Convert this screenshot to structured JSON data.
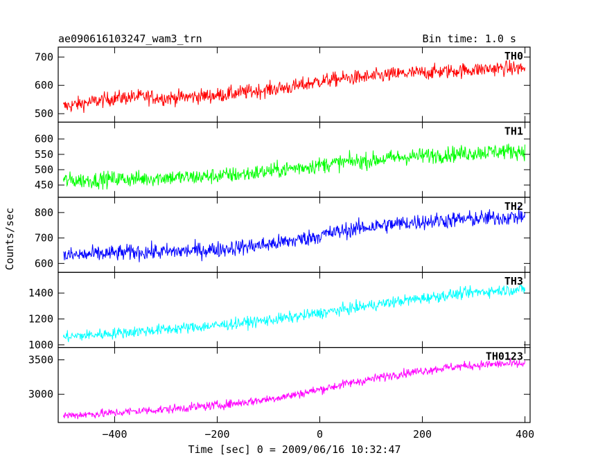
{
  "chart_data": {
    "type": "line",
    "title": "ae090616103247_wam3_trn",
    "bin_time_label": "Bin time: 1.0 s",
    "xlabel": "Time [sec] 0 = 2009/06/16 10:32:47",
    "ylabel": "Counts/sec",
    "xlim": [
      -510,
      410
    ],
    "x_ticks": [
      -400,
      -200,
      0,
      200,
      400
    ],
    "x_tick_labels": [
      "−400",
      "−200",
      "0",
      "200",
      "400"
    ],
    "grid": false,
    "series": [
      {
        "name": "TH0",
        "color": "#ff0000",
        "ylim": [
          470,
          735
        ],
        "y_ticks": [
          500,
          600,
          700
        ],
        "y_tick_labels": [
          "500",
          "600",
          "700"
        ],
        "x": [
          -500,
          -450,
          -400,
          -350,
          -300,
          -250,
          -200,
          -150,
          -100,
          -50,
          0,
          50,
          100,
          150,
          200,
          250,
          300,
          350,
          400
        ],
        "values": [
          525,
          540,
          555,
          560,
          555,
          560,
          565,
          575,
          585,
          595,
          615,
          625,
          630,
          640,
          645,
          650,
          655,
          660,
          660
        ],
        "noise_amplitude": 45
      },
      {
        "name": "TH1",
        "color": "#00ff00",
        "ylim": [
          410,
          655
        ],
        "y_ticks": [
          450,
          500,
          550,
          600
        ],
        "y_tick_labels": [
          "450",
          "500",
          "550",
          "600"
        ],
        "x": [
          -500,
          -450,
          -400,
          -350,
          -300,
          -250,
          -200,
          -150,
          -100,
          -50,
          0,
          50,
          100,
          150,
          200,
          250,
          300,
          350,
          400
        ],
        "values": [
          465,
          465,
          470,
          470,
          475,
          475,
          480,
          485,
          495,
          505,
          515,
          525,
          530,
          540,
          545,
          550,
          555,
          560,
          560
        ],
        "noise_amplitude": 45
      },
      {
        "name": "TH2",
        "color": "#0000ff",
        "ylim": [
          565,
          860
        ],
        "y_ticks": [
          600,
          700,
          800
        ],
        "y_tick_labels": [
          "600",
          "700",
          "800"
        ],
        "x": [
          -500,
          -450,
          -400,
          -350,
          -300,
          -250,
          -200,
          -150,
          -100,
          -50,
          0,
          50,
          100,
          150,
          200,
          250,
          300,
          350,
          400
        ],
        "values": [
          630,
          635,
          640,
          645,
          645,
          650,
          655,
          665,
          675,
          690,
          710,
          730,
          745,
          755,
          765,
          770,
          775,
          780,
          785
        ],
        "noise_amplitude": 55
      },
      {
        "name": "TH3",
        "color": "#00ffff",
        "ylim": [
          980,
          1560
        ],
        "y_ticks": [
          1000,
          1200,
          1400
        ],
        "y_tick_labels": [
          "1000",
          "1200",
          "1400"
        ],
        "x": [
          -500,
          -450,
          -400,
          -350,
          -300,
          -250,
          -200,
          -150,
          -100,
          -50,
          0,
          50,
          100,
          150,
          200,
          250,
          300,
          350,
          400
        ],
        "values": [
          1060,
          1075,
          1090,
          1105,
          1120,
          1135,
          1150,
          1170,
          1190,
          1215,
          1245,
          1275,
          1305,
          1335,
          1360,
          1385,
          1405,
          1420,
          1430
        ],
        "noise_amplitude": 75
      },
      {
        "name": "TH0123",
        "color": "#ff00ff",
        "ylim": [
          2590,
          3680
        ],
        "y_ticks": [
          3000,
          3500
        ],
        "y_tick_labels": [
          "3000",
          "3500"
        ],
        "x": [
          -500,
          -450,
          -400,
          -350,
          -300,
          -250,
          -200,
          -150,
          -100,
          -50,
          0,
          50,
          100,
          150,
          200,
          250,
          300,
          350,
          400
        ],
        "values": [
          2690,
          2710,
          2730,
          2760,
          2780,
          2810,
          2840,
          2880,
          2930,
          2990,
          3070,
          3150,
          3220,
          3290,
          3340,
          3390,
          3420,
          3440,
          3440
        ],
        "noise_amplitude": 110
      }
    ]
  }
}
